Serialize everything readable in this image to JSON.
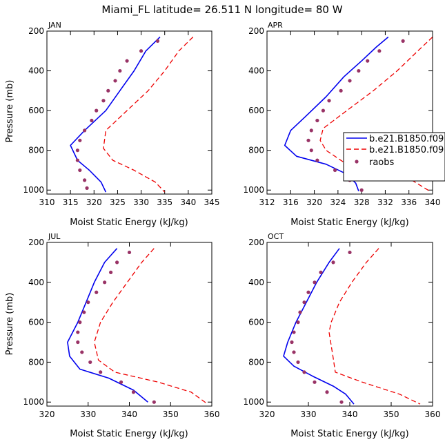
{
  "figure_title": "Miami_FL   latitude= 26.511 N longitude= 80 W",
  "colors": {
    "model1": "#0000ee",
    "model2": "#ee0000",
    "raobs": "#993366",
    "axis": "#000000"
  },
  "legend": [
    "b.e21.B1850.f09",
    "b.e21.B1850.f09",
    "raobs"
  ],
  "chart_data": [
    {
      "type": "line",
      "panel": "JAN",
      "xlabel": "Moist Static Energy (kJ/kg)",
      "ylabel": "Pressure (mb)",
      "xlim": [
        310,
        345
      ],
      "ylim": [
        200,
        1020
      ],
      "y_inverted": true,
      "xticks": [
        310,
        315,
        320,
        325,
        330,
        335,
        340,
        345
      ],
      "yticks": [
        200,
        400,
        600,
        800,
        1000
      ],
      "series": [
        {
          "name": "b.e21.B1850.f09",
          "style": "solid",
          "points": [
            [
              334,
              230
            ],
            [
              331,
              300
            ],
            [
              328.5,
              400
            ],
            [
              325.5,
              500
            ],
            [
              322.5,
              600
            ],
            [
              318,
              700
            ],
            [
              315,
              775
            ],
            [
              316.5,
              850
            ],
            [
              319,
              900
            ],
            [
              321.5,
              960
            ],
            [
              322.5,
              1010
            ]
          ]
        },
        {
          "name": "b.e21.B1850.f09",
          "style": "dashed",
          "points": [
            [
              341,
              230
            ],
            [
              338,
              300
            ],
            [
              335,
              400
            ],
            [
              331.5,
              500
            ],
            [
              327,
              600
            ],
            [
              322.5,
              700
            ],
            [
              322,
              790
            ],
            [
              324,
              850
            ],
            [
              328.5,
              900
            ],
            [
              333,
              960
            ],
            [
              335,
              1010
            ]
          ]
        },
        {
          "name": "raobs",
          "style": "dots",
          "points": [
            [
              333.5,
              250
            ],
            [
              330,
              300
            ],
            [
              327,
              350
            ],
            [
              325.5,
              400
            ],
            [
              324.5,
              450
            ],
            [
              323,
              500
            ],
            [
              322,
              550
            ],
            [
              320.5,
              600
            ],
            [
              319.5,
              650
            ],
            [
              318,
              700
            ],
            [
              317,
              750
            ],
            [
              316.5,
              800
            ],
            [
              316.5,
              850
            ],
            [
              317,
              900
            ],
            [
              318,
              950
            ],
            [
              318.5,
              990
            ]
          ]
        }
      ]
    },
    {
      "type": "line",
      "panel": "APR",
      "xlabel": "Moist Static Energy (kJ/kg)",
      "ylabel": "",
      "xlim": [
        312,
        340
      ],
      "ylim": [
        200,
        1020
      ],
      "y_inverted": true,
      "xticks": [
        312,
        316,
        320,
        324,
        328,
        332,
        336,
        340
      ],
      "yticks": [
        200,
        400,
        600,
        800,
        1000
      ],
      "series": [
        {
          "name": "b.e21.B1850.f09",
          "style": "solid",
          "points": [
            [
              332.5,
              230
            ],
            [
              330.5,
              280
            ],
            [
              328,
              350
            ],
            [
              325,
              430
            ],
            [
              322,
              530
            ],
            [
              318.5,
              630
            ],
            [
              316,
              700
            ],
            [
              315,
              775
            ],
            [
              317,
              830
            ],
            [
              322,
              870
            ],
            [
              325.5,
              920
            ],
            [
              327,
              965
            ],
            [
              327.5,
              1005
            ]
          ]
        },
        {
          "name": "b.e21.B1850.f09",
          "style": "dashed",
          "points": [
            [
              340,
              230
            ],
            [
              337.5,
              300
            ],
            [
              334,
              400
            ],
            [
              330,
              500
            ],
            [
              325.5,
              600
            ],
            [
              321.5,
              690
            ],
            [
              321,
              750
            ],
            [
              322,
              800
            ],
            [
              325,
              860
            ],
            [
              331,
              900
            ],
            [
              336.5,
              950
            ],
            [
              339.5,
              1005
            ]
          ]
        },
        {
          "name": "raobs",
          "style": "dots",
          "points": [
            [
              335,
              250
            ],
            [
              331,
              300
            ],
            [
              329,
              350
            ],
            [
              327.5,
              400
            ],
            [
              326,
              450
            ],
            [
              324.5,
              500
            ],
            [
              322.5,
              550
            ],
            [
              321.5,
              600
            ],
            [
              320.5,
              650
            ],
            [
              319.5,
              700
            ],
            [
              319,
              750
            ],
            [
              319.5,
              800
            ],
            [
              320.5,
              850
            ],
            [
              323.5,
              900
            ],
            [
              326,
              950
            ],
            [
              328,
              1000
            ]
          ]
        }
      ]
    },
    {
      "type": "line",
      "panel": "JUL",
      "xlabel": "Moist Static Energy (kJ/kg)",
      "ylabel": "Pressure (mb)",
      "xlim": [
        320,
        360
      ],
      "ylim": [
        200,
        1020
      ],
      "y_inverted": true,
      "xticks": [
        320,
        330,
        340,
        350,
        360
      ],
      "yticks": [
        200,
        400,
        600,
        800,
        1000
      ],
      "series": [
        {
          "name": "b.e21.B1850.f09",
          "style": "solid",
          "points": [
            [
              337,
              230
            ],
            [
              334,
              300
            ],
            [
              331.5,
              400
            ],
            [
              329.5,
              500
            ],
            [
              327.5,
              600
            ],
            [
              325,
              700
            ],
            [
              325.5,
              770
            ],
            [
              328,
              835
            ],
            [
              335,
              880
            ],
            [
              341,
              940
            ],
            [
              344.5,
              1000
            ]
          ]
        },
        {
          "name": "b.e21.B1850.f09",
          "style": "dashed",
          "points": [
            [
              346,
              230
            ],
            [
              343,
              300
            ],
            [
              339.5,
              400
            ],
            [
              336,
              500
            ],
            [
              333,
              600
            ],
            [
              331.5,
              700
            ],
            [
              332.5,
              790
            ],
            [
              336.5,
              850
            ],
            [
              347,
              900
            ],
            [
              355,
              950
            ],
            [
              359,
              1010
            ]
          ]
        },
        {
          "name": "raobs",
          "style": "dots",
          "points": [
            [
              340,
              250
            ],
            [
              337,
              300
            ],
            [
              335.5,
              350
            ],
            [
              334,
              400
            ],
            [
              332,
              450
            ],
            [
              330,
              500
            ],
            [
              329,
              550
            ],
            [
              328,
              600
            ],
            [
              327.5,
              650
            ],
            [
              327.5,
              700
            ],
            [
              328.5,
              750
            ],
            [
              330.5,
              800
            ],
            [
              333,
              850
            ],
            [
              338,
              900
            ],
            [
              341,
              950
            ],
            [
              346,
              1000
            ]
          ]
        }
      ]
    },
    {
      "type": "line",
      "panel": "OCT",
      "xlabel": "Moist Static Energy (kJ/kg)",
      "ylabel": "",
      "xlim": [
        320,
        360
      ],
      "ylim": [
        200,
        1020
      ],
      "y_inverted": true,
      "xticks": [
        320,
        330,
        340,
        350,
        360
      ],
      "yticks": [
        200,
        400,
        600,
        800,
        1000
      ],
      "series": [
        {
          "name": "b.e21.B1850.f09",
          "style": "solid",
          "points": [
            [
              337.5,
              230
            ],
            [
              335,
              300
            ],
            [
              332,
              400
            ],
            [
              329.5,
              500
            ],
            [
              327,
              600
            ],
            [
              325,
              700
            ],
            [
              324,
              770
            ],
            [
              326.5,
              820
            ],
            [
              331,
              870
            ],
            [
              336,
              920
            ],
            [
              339,
              960
            ],
            [
              341,
              1010
            ]
          ]
        },
        {
          "name": "b.e21.B1850.f09",
          "style": "dashed",
          "points": [
            [
              347,
              230
            ],
            [
              344,
              300
            ],
            [
              340.5,
              400
            ],
            [
              337.5,
              500
            ],
            [
              335.5,
              600
            ],
            [
              335,
              650
            ],
            [
              336,
              780
            ],
            [
              336.5,
              850
            ],
            [
              343,
              900
            ],
            [
              352,
              960
            ],
            [
              357,
              1010
            ]
          ]
        },
        {
          "name": "raobs",
          "style": "dots",
          "points": [
            [
              340,
              250
            ],
            [
              336,
              300
            ],
            [
              333,
              350
            ],
            [
              331.5,
              400
            ],
            [
              330,
              450
            ],
            [
              329,
              500
            ],
            [
              328,
              550
            ],
            [
              327.5,
              600
            ],
            [
              326.5,
              650
            ],
            [
              326,
              700
            ],
            [
              326.5,
              750
            ],
            [
              327.5,
              800
            ],
            [
              329,
              850
            ],
            [
              331.5,
              900
            ],
            [
              334.5,
              950
            ],
            [
              338,
              1000
            ]
          ]
        }
      ]
    }
  ]
}
